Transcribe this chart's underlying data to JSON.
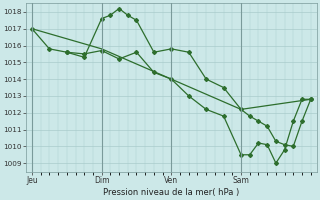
{
  "title": "Pression niveau de la mer( hPa )",
  "bg_color": "#cce8e8",
  "grid_color": "#aacccc",
  "line_color": "#2d6e2d",
  "ylim": [
    1008.5,
    1018.5
  ],
  "yticks": [
    1009,
    1010,
    1011,
    1012,
    1013,
    1014,
    1015,
    1016,
    1017,
    1018
  ],
  "xtick_labels": [
    "Jeu",
    "Dim",
    "Ven",
    "Sam"
  ],
  "xtick_positions": [
    0,
    48,
    96,
    144
  ],
  "xlim": [
    -4,
    196
  ],
  "vlines": [
    0,
    48,
    96,
    144
  ],
  "s1_x": [
    0,
    48,
    96,
    144,
    192
  ],
  "s1_y": [
    1017.0,
    1015.8,
    1014.0,
    1012.2,
    1012.8
  ],
  "s2_x": [
    0,
    12,
    24,
    36,
    48,
    60,
    72,
    84,
    96,
    108,
    120,
    132,
    144,
    150,
    156,
    162,
    168,
    174,
    180,
    186,
    192
  ],
  "s2_y": [
    1017.0,
    1015.8,
    1015.6,
    1015.5,
    1015.7,
    1015.2,
    1015.6,
    1014.4,
    1014.0,
    1013.0,
    1012.2,
    1011.8,
    1009.5,
    1009.5,
    1010.2,
    1010.1,
    1009.0,
    1009.8,
    1011.5,
    1012.8,
    1012.8
  ],
  "s3_x": [
    24,
    36,
    48,
    54,
    60,
    66,
    72,
    84,
    96,
    108,
    120,
    132,
    144,
    150,
    156,
    162,
    168,
    174,
    180,
    186,
    192
  ],
  "s3_y": [
    1015.6,
    1015.3,
    1017.6,
    1017.8,
    1018.2,
    1017.8,
    1017.5,
    1015.6,
    1015.8,
    1015.6,
    1014.0,
    1013.5,
    1012.2,
    1011.8,
    1011.5,
    1011.2,
    1010.3,
    1010.1,
    1010.0,
    1011.5,
    1012.8
  ]
}
